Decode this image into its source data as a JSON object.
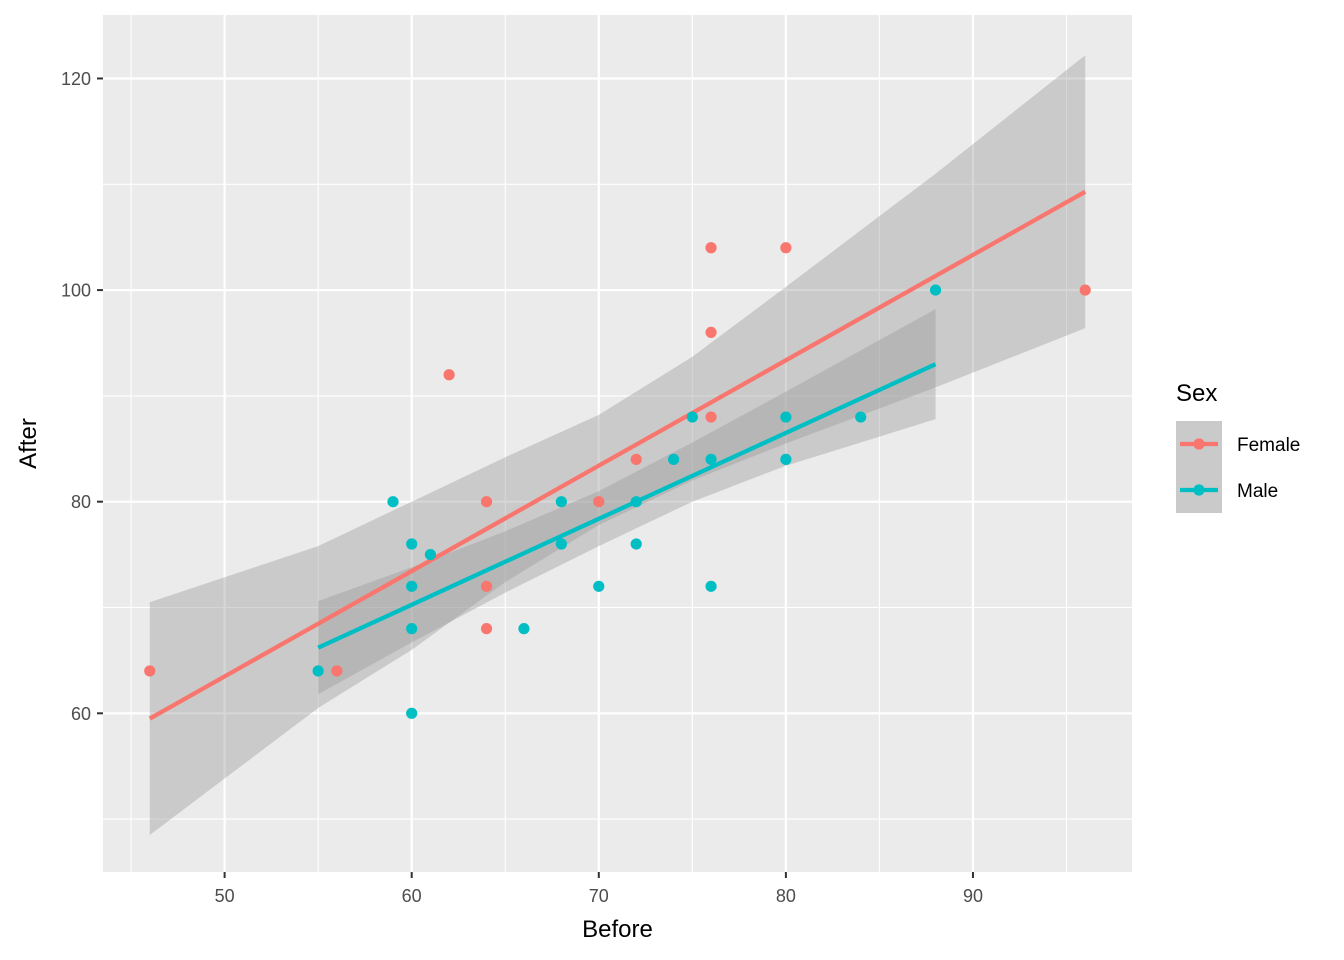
{
  "chart_data": {
    "type": "scatter",
    "xlabel": "Before",
    "ylabel": "After",
    "xlim": [
      43.5,
      98.5
    ],
    "ylim": [
      45,
      126
    ],
    "x_ticks": [
      50,
      60,
      70,
      80,
      90
    ],
    "y_ticks": [
      60,
      80,
      100,
      120
    ],
    "x_tick_labels": [
      "50",
      "60",
      "70",
      "80",
      "90"
    ],
    "y_tick_labels": [
      "60",
      "80",
      "100",
      "120"
    ],
    "grid": true,
    "legend": {
      "title": "Sex",
      "placement": "right"
    },
    "series": [
      {
        "name": "Female",
        "color": "#F8766D",
        "points": [
          {
            "x": 46,
            "y": 64
          },
          {
            "x": 56,
            "y": 64
          },
          {
            "x": 62,
            "y": 92
          },
          {
            "x": 64,
            "y": 80
          },
          {
            "x": 64,
            "y": 72
          },
          {
            "x": 64,
            "y": 68
          },
          {
            "x": 70,
            "y": 80
          },
          {
            "x": 72,
            "y": 84
          },
          {
            "x": 76,
            "y": 104
          },
          {
            "x": 76,
            "y": 96
          },
          {
            "x": 76,
            "y": 88
          },
          {
            "x": 80,
            "y": 104
          },
          {
            "x": 96,
            "y": 100
          }
        ],
        "fit": {
          "x": [
            46,
            96
          ],
          "y": [
            59.5,
            109.3
          ]
        },
        "ci_band": {
          "x": [
            46,
            55,
            60,
            65,
            70,
            75,
            80,
            88,
            96
          ],
          "lower": [
            48.5,
            60.5,
            66.0,
            72.4,
            77.8,
            82.0,
            85.5,
            90.8,
            96.4
          ],
          "upper": [
            70.5,
            75.8,
            80.0,
            84.2,
            88.2,
            93.7,
            100.3,
            111.0,
            122.2
          ]
        }
      },
      {
        "name": "Male",
        "color": "#00BFC4",
        "points": [
          {
            "x": 55,
            "y": 64
          },
          {
            "x": 59,
            "y": 80
          },
          {
            "x": 60,
            "y": 76
          },
          {
            "x": 60,
            "y": 72
          },
          {
            "x": 60,
            "y": 68
          },
          {
            "x": 60,
            "y": 60
          },
          {
            "x": 61,
            "y": 75
          },
          {
            "x": 66,
            "y": 68
          },
          {
            "x": 68,
            "y": 80
          },
          {
            "x": 68,
            "y": 76
          },
          {
            "x": 70,
            "y": 72
          },
          {
            "x": 72,
            "y": 80
          },
          {
            "x": 72,
            "y": 76
          },
          {
            "x": 74,
            "y": 84
          },
          {
            "x": 75,
            "y": 88
          },
          {
            "x": 76,
            "y": 84
          },
          {
            "x": 76,
            "y": 72
          },
          {
            "x": 80,
            "y": 88
          },
          {
            "x": 80,
            "y": 84
          },
          {
            "x": 84,
            "y": 88
          },
          {
            "x": 88,
            "y": 100
          }
        ],
        "fit": {
          "x": [
            55,
            88
          ],
          "y": [
            66.2,
            93.0
          ]
        },
        "ci_band": {
          "x": [
            55,
            60,
            65,
            70,
            75,
            80,
            88
          ],
          "lower": [
            61.8,
            66.7,
            71.4,
            75.8,
            80.0,
            83.4,
            87.8
          ],
          "upper": [
            70.6,
            73.8,
            77.2,
            81.0,
            85.6,
            90.4,
            98.2
          ]
        }
      }
    ]
  }
}
